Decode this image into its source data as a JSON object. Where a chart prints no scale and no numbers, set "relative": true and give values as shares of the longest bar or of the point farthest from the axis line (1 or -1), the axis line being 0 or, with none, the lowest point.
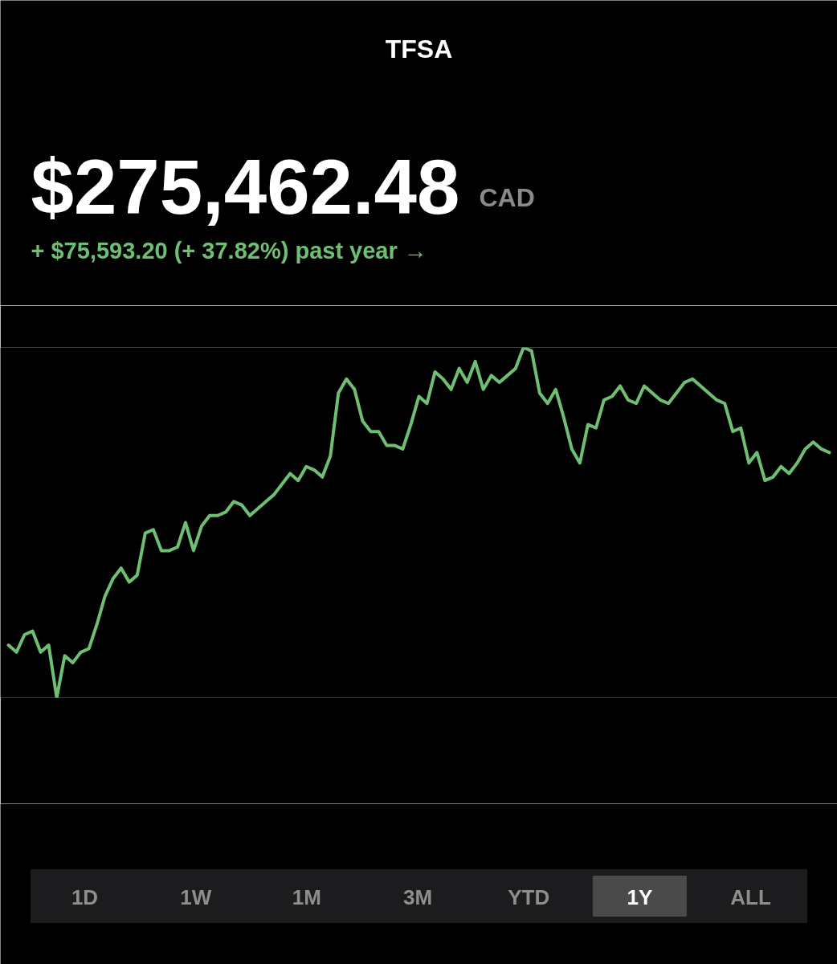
{
  "chart_data": {
    "type": "line",
    "title": "TFSA",
    "subtitle": "$275,462.48",
    "relative": true,
    "annotations": [
      "CAD",
      "+ $75,593.20 (+ 37.82%) past year →",
      "1D",
      "1W",
      "1M",
      "3M",
      "YTD",
      "1Y",
      "ALL"
    ],
    "categories": [
      null,
      null,
      null,
      null,
      null,
      null,
      null,
      null,
      null,
      null,
      null,
      null,
      null,
      null,
      null,
      null,
      null,
      null,
      null,
      null,
      null,
      null,
      null,
      null,
      null,
      null,
      null,
      null,
      null,
      null,
      null,
      null,
      null,
      null,
      null,
      null,
      null,
      null,
      null,
      null,
      null,
      null,
      null,
      null,
      null,
      null,
      null,
      null,
      null,
      null,
      null,
      null,
      null,
      null,
      null,
      null,
      null,
      null,
      null,
      null,
      null,
      null,
      null,
      null,
      null,
      null,
      null,
      null,
      null,
      null,
      null,
      null,
      null,
      null,
      null,
      null,
      null,
      null,
      null,
      null,
      null,
      null,
      null,
      null,
      null,
      null,
      null,
      null,
      null,
      null,
      null,
      null,
      null,
      null,
      null,
      null,
      null,
      null,
      null,
      null,
      null,
      null,
      null
    ],
    "series": [
      {
        "color": "#6fbf73",
        "values": [
          0.15,
          0.13,
          0.18,
          0.19,
          0.13,
          0.15,
          0,
          0.12,
          0.1,
          0.13,
          0.14,
          0.21,
          0.29,
          0.34,
          0.37,
          0.33,
          0.35,
          0.47,
          0.48,
          0.42,
          0.42,
          0.43,
          0.5,
          0.42,
          0.49,
          0.52,
          0.52,
          0.53,
          0.56,
          0.55,
          0.52,
          0.54,
          0.56,
          0.58,
          0.61,
          0.64,
          0.62,
          0.66,
          0.65,
          0.63,
          0.69,
          0.87,
          0.91,
          0.88,
          0.79,
          0.76,
          0.76,
          0.72,
          0.72,
          0.71,
          0.78,
          0.86,
          0.84,
          0.93,
          0.91,
          0.88,
          0.94,
          0.9,
          0.96,
          0.88,
          0.92,
          0.9,
          0.92,
          0.94,
          1.0,
          0.99,
          0.87,
          0.84,
          0.88,
          0.8,
          0.71,
          0.67,
          0.78,
          0.77,
          0.85,
          0.86,
          0.89,
          0.85,
          0.84,
          0.89,
          0.87,
          0.85,
          0.84,
          0.87,
          0.9,
          0.91,
          0.89,
          0.87,
          0.85,
          0.84,
          0.76,
          0.77,
          0.67,
          0.7,
          0.62,
          0.63,
          0.66,
          0.64,
          0.67,
          0.71,
          0.73,
          0.71,
          0.7
        ]
      }
    ]
  }
}
